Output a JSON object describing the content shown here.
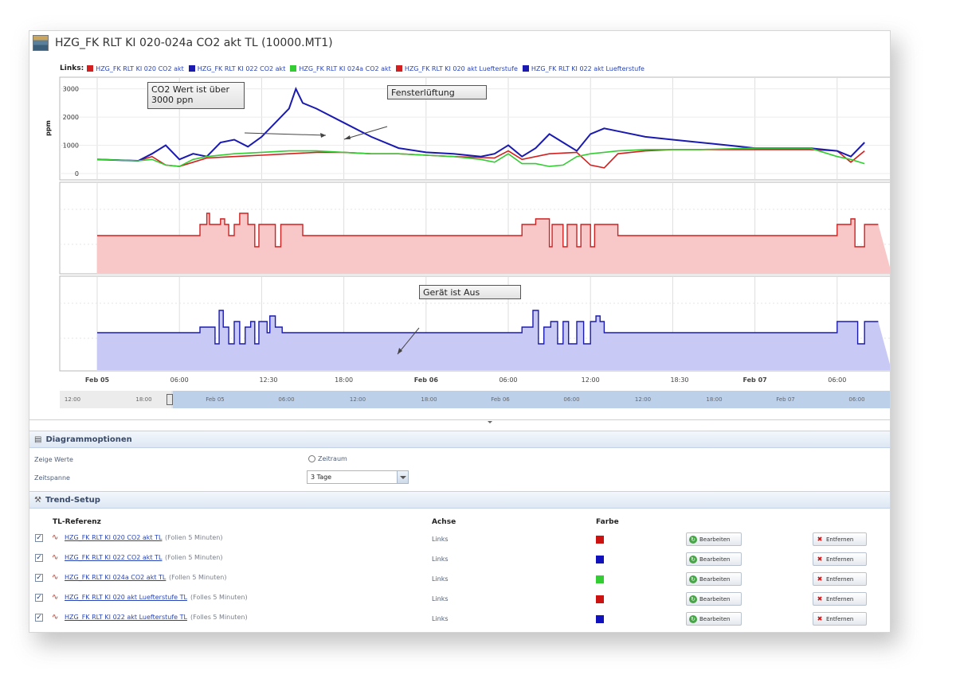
{
  "window": {
    "title": "HZG_FK RLT KI 020-024a CO2 akt TL (10000.MT1)"
  },
  "legend": {
    "label": "Links:",
    "items": [
      {
        "name": "HZG_FK RLT KI 020 CO2 akt",
        "color": "#d21f1f"
      },
      {
        "name": "HZG_FK RLT KI 022 CO2 akt",
        "color": "#1a1ab0"
      },
      {
        "name": "HZG_FK RLT KI 024a CO2 akt",
        "color": "#33cc33"
      },
      {
        "name": "HZG_FK RLT KI 020 akt Luefterstufe",
        "color": "#d21f1f"
      },
      {
        "name": "HZG_FK RLT KI 022 akt Luefterstufe",
        "color": "#1a1ab0"
      }
    ]
  },
  "chart_data": [
    {
      "type": "line",
      "ylabel": "ppm",
      "ylim": [
        0,
        3300
      ],
      "yticks": [
        "0",
        "1000",
        "2000",
        "3000"
      ],
      "x_unit": "hours since Feb 05 00:00",
      "series": [
        {
          "name": "HZG_FK RLT KI 020 CO2 akt",
          "color": "#d21f1f",
          "points": [
            [
              0,
              500
            ],
            [
              3,
              450
            ],
            [
              4,
              600
            ],
            [
              5,
              300
            ],
            [
              6,
              250
            ],
            [
              7,
              400
            ],
            [
              8,
              550
            ],
            [
              10,
              600
            ],
            [
              12,
              650
            ],
            [
              14,
              700
            ],
            [
              16,
              750
            ],
            [
              18,
              750
            ],
            [
              20,
              700
            ],
            [
              22,
              700
            ],
            [
              24,
              650
            ],
            [
              26,
              600
            ],
            [
              29,
              550
            ],
            [
              30,
              800
            ],
            [
              31,
              500
            ],
            [
              33,
              700
            ],
            [
              35,
              750
            ],
            [
              36,
              300
            ],
            [
              37,
              200
            ],
            [
              38,
              700
            ],
            [
              40,
              800
            ],
            [
              42,
              850
            ],
            [
              44,
              850
            ],
            [
              46,
              850
            ],
            [
              48,
              850
            ],
            [
              50,
              850
            ],
            [
              52,
              850
            ],
            [
              54,
              800
            ],
            [
              55,
              400
            ],
            [
              56,
              800
            ]
          ]
        },
        {
          "name": "HZG_FK RLT KI 022 CO2 akt",
          "color": "#1a1ab0",
          "points": [
            [
              0,
              500
            ],
            [
              3,
              450
            ],
            [
              4,
              700
            ],
            [
              5,
              1000
            ],
            [
              6,
              500
            ],
            [
              7,
              700
            ],
            [
              8,
              600
            ],
            [
              9,
              1100
            ],
            [
              10,
              1200
            ],
            [
              11,
              950
            ],
            [
              12,
              1300
            ],
            [
              14,
              2300
            ],
            [
              14.5,
              3000
            ],
            [
              15,
              2500
            ],
            [
              16,
              2300
            ],
            [
              18,
              1800
            ],
            [
              20,
              1300
            ],
            [
              22,
              900
            ],
            [
              24,
              750
            ],
            [
              26,
              700
            ],
            [
              28,
              600
            ],
            [
              29,
              700
            ],
            [
              30,
              1000
            ],
            [
              31,
              600
            ],
            [
              32,
              900
            ],
            [
              33,
              1400
            ],
            [
              34,
              1100
            ],
            [
              35,
              800
            ],
            [
              36,
              1400
            ],
            [
              37,
              1600
            ],
            [
              38,
              1500
            ],
            [
              40,
              1300
            ],
            [
              42,
              1200
            ],
            [
              44,
              1100
            ],
            [
              46,
              1000
            ],
            [
              48,
              900
            ],
            [
              50,
              900
            ],
            [
              52,
              900
            ],
            [
              54,
              800
            ],
            [
              55,
              600
            ],
            [
              56,
              1100
            ]
          ]
        },
        {
          "name": "HZG_FK RLT KI 024a CO2 akt",
          "color": "#33cc33",
          "points": [
            [
              0,
              500
            ],
            [
              3,
              450
            ],
            [
              4,
              500
            ],
            [
              5,
              300
            ],
            [
              6,
              250
            ],
            [
              7,
              500
            ],
            [
              8,
              600
            ],
            [
              10,
              700
            ],
            [
              12,
              750
            ],
            [
              14,
              800
            ],
            [
              16,
              800
            ],
            [
              18,
              750
            ],
            [
              20,
              700
            ],
            [
              22,
              700
            ],
            [
              24,
              650
            ],
            [
              26,
              600
            ],
            [
              28,
              500
            ],
            [
              29,
              400
            ],
            [
              30,
              700
            ],
            [
              31,
              350
            ],
            [
              32,
              350
            ],
            [
              33,
              250
            ],
            [
              34,
              300
            ],
            [
              35,
              600
            ],
            [
              36,
              700
            ],
            [
              38,
              800
            ],
            [
              40,
              850
            ],
            [
              44,
              850
            ],
            [
              48,
              900
            ],
            [
              50,
              900
            ],
            [
              52,
              900
            ],
            [
              54,
              600
            ],
            [
              55,
              500
            ],
            [
              56,
              350
            ]
          ]
        },
        {
          "name": "HZG_FK RLT KI 020 akt Luefterstufe",
          "color": "#d21f1f",
          "fill": "#f8c8c8"
        },
        {
          "name": "HZG_FK RLT KI 022 akt Luefterstufe",
          "color": "#1a1ab0",
          "fill": "#c9c9f6"
        }
      ]
    }
  ],
  "annotations": {
    "co2_over": "CO2 Wert ist über 3000 ppn",
    "window_vent": "Fensterlüftung",
    "device_off": "Gerät ist Aus"
  },
  "time_axis": [
    "Feb 05",
    "06:00",
    "12:30",
    "18:00",
    "Feb 06",
    "06:00",
    "12:00",
    "18:30",
    "Feb 07",
    "06:00"
  ],
  "navigator": {
    "labels": [
      "12:00",
      "18:00",
      "Feb 05",
      "06:00",
      "12:00",
      "18:00",
      "Feb 06",
      "06:00",
      "12:00",
      "18:00",
      "Feb 07",
      "06:00"
    ]
  },
  "diagram_options": {
    "header": "Diagrammoptionen",
    "show_values_label": "Zeige Werte",
    "show_values_option": "Zeitraum",
    "timespan_label": "Zeitspanne",
    "timespan_value": "3 Tage"
  },
  "trend_setup": {
    "header": "Trend-Setup",
    "columns": {
      "reference": "TL-Referenz",
      "axis": "Achse",
      "color": "Farbe"
    },
    "rows": [
      {
        "ref": "HZG_FK RLT KI 020 CO2 akt TL",
        "suffix": "(Folien 5 Minuten)",
        "axis": "Links",
        "color": "#cc1111",
        "edit": "Bearbeiten",
        "remove": "Entfernen"
      },
      {
        "ref": "HZG_FK RLT KI 022 CO2 akt TL",
        "suffix": "(Folien 5 Minuten)",
        "axis": "Links",
        "color": "#1111bb",
        "edit": "Bearbeiten",
        "remove": "Entfernen"
      },
      {
        "ref": "HZG_FK RLT KI 024a CO2 akt TL",
        "suffix": "(Follen 5 Minuten)",
        "axis": "Links",
        "color": "#33cc33",
        "edit": "Bearbeiten",
        "remove": "Entfernen"
      },
      {
        "ref": "HZG_FK RLT KI 020 akt Luefterstufe TL",
        "suffix": "(Folles 5 Minuten)",
        "axis": "Links",
        "color": "#cc1111",
        "edit": "Bearbeiten",
        "remove": "Entfernen"
      },
      {
        "ref": "HZG_FK RLT KI 022 akt Luefterstufe TL",
        "suffix": "(Folles 5 Minuten)",
        "axis": "Links",
        "color": "#1111bb",
        "edit": "Bearbeiten",
        "remove": "Entfernen"
      }
    ]
  }
}
